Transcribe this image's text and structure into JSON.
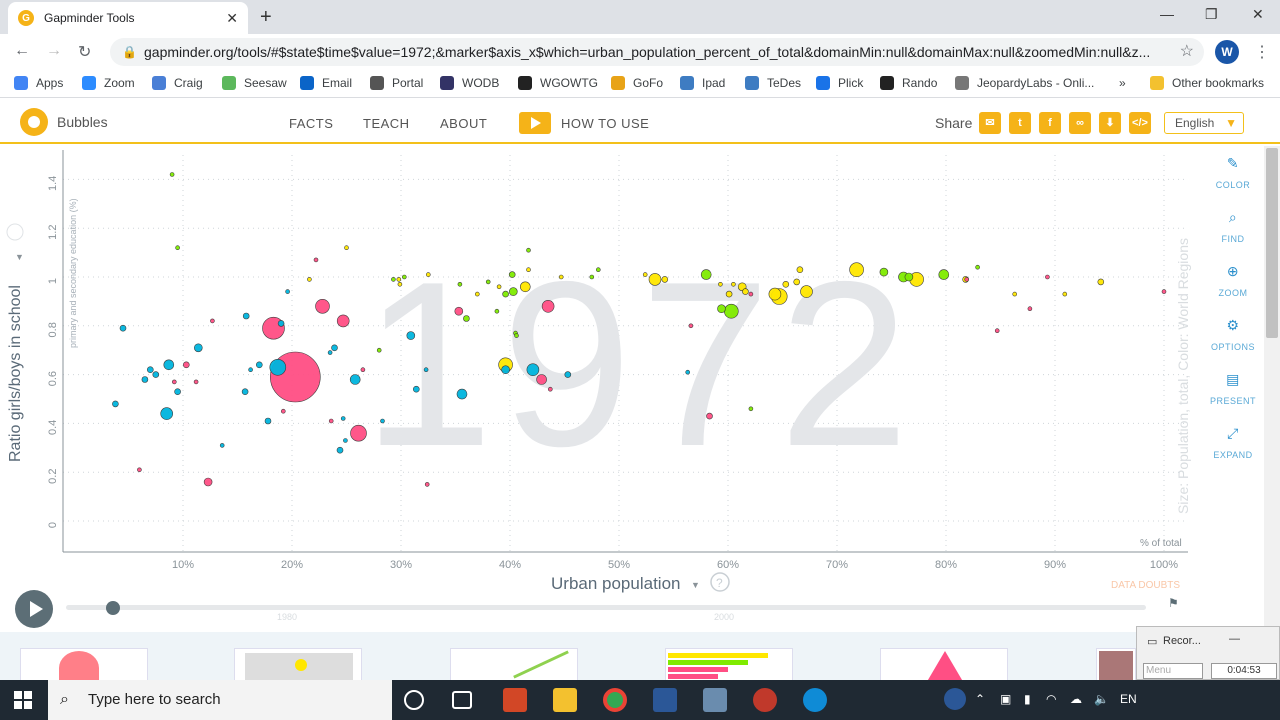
{
  "browser": {
    "tab_title": "Gapminder Tools",
    "tab_close": "✕",
    "new_tab": "+",
    "url": "gapminder.org/tools/#$state$time$value=1972;&marker$axis_x$which=urban_population_percent_of_total&domainMin:null&domainMax:null&zoomedMin:null&z...",
    "profile_initial": "W",
    "window_minimize": "—",
    "window_restore": "❐",
    "window_close": "✕"
  },
  "bookmarks": [
    {
      "label": "Apps",
      "color": "#4285f4"
    },
    {
      "label": "Zoom",
      "color": "#2d8cff"
    },
    {
      "label": "Craig",
      "color": "#4a7fd6"
    },
    {
      "label": "Seesaw",
      "color": "#5cb85c"
    },
    {
      "label": "Email",
      "color": "#0a64c8"
    },
    {
      "label": "Portal",
      "color": "#555555"
    },
    {
      "label": "WODB",
      "color": "#333366"
    },
    {
      "label": "WGOWTG",
      "color": "#222222"
    },
    {
      "label": "GoFo",
      "color": "#e8a317"
    },
    {
      "label": "Ipad",
      "color": "#3e7cc2"
    },
    {
      "label": "TeDes",
      "color": "#3e7cc2"
    },
    {
      "label": "Plick",
      "color": "#1a73e8"
    },
    {
      "label": "Rando",
      "color": "#222222"
    },
    {
      "label": "JeopardyLabs - Onli...",
      "color": "#777777"
    }
  ],
  "bookmarks_more": "»",
  "other_bookmarks": "Other bookmarks",
  "gapminder": {
    "tool_name": "Bubbles",
    "nav": [
      "FACTS",
      "TEACH",
      "ABOUT"
    ],
    "how_to_use": "HOW TO USE",
    "share_label": "Share",
    "language": "English",
    "language_arrow": "▼"
  },
  "chart_data": {
    "type": "scatter",
    "year_watermark": "1972",
    "ylabel": "Ratio girls/boys in school",
    "ylabel_sub": "primary and secondary education (%)",
    "xlabel": "Urban population",
    "x_unit_note": "% of total",
    "size_color_note": "Size: Population, total, Color: World Regions",
    "data_doubts": "DATA DOUBTS",
    "x_ticks": [
      "10%",
      "20%",
      "30%",
      "40%",
      "50%",
      "60%",
      "70%",
      "80%",
      "90%",
      "100%"
    ],
    "y_ticks": [
      "0",
      "0.2",
      "0.4",
      "0.6",
      "0.8",
      "1",
      "1.2",
      "1.4"
    ],
    "xlim": [
      0,
      100
    ],
    "ylim": [
      0,
      1.5
    ],
    "grid": true,
    "colors": {
      "africa": "#00b5de",
      "asia": "#ff4f84",
      "americas": "#7feb00",
      "europe": "#ffe700"
    },
    "points": [
      {
        "x": 9,
        "y": 1.42,
        "r": 2,
        "c": "americas"
      },
      {
        "x": 9.5,
        "y": 1.12,
        "r": 2,
        "c": "americas"
      },
      {
        "x": 4.5,
        "y": 0.79,
        "r": 3,
        "c": "africa"
      },
      {
        "x": 7,
        "y": 0.62,
        "r": 3,
        "c": "africa"
      },
      {
        "x": 7.5,
        "y": 0.6,
        "r": 3,
        "c": "africa"
      },
      {
        "x": 6.5,
        "y": 0.58,
        "r": 3,
        "c": "africa"
      },
      {
        "x": 3.8,
        "y": 0.48,
        "r": 3,
        "c": "africa"
      },
      {
        "x": 8.7,
        "y": 0.64,
        "r": 5,
        "c": "africa"
      },
      {
        "x": 9.2,
        "y": 0.57,
        "r": 2,
        "c": "asia"
      },
      {
        "x": 9.5,
        "y": 0.53,
        "r": 3,
        "c": "africa"
      },
      {
        "x": 10.3,
        "y": 0.64,
        "r": 3,
        "c": "asia"
      },
      {
        "x": 8.5,
        "y": 0.44,
        "r": 6,
        "c": "africa"
      },
      {
        "x": 11.4,
        "y": 0.71,
        "r": 4,
        "c": "africa"
      },
      {
        "x": 11.2,
        "y": 0.57,
        "r": 2,
        "c": "asia"
      },
      {
        "x": 12.7,
        "y": 0.82,
        "r": 2,
        "c": "asia"
      },
      {
        "x": 13.6,
        "y": 0.31,
        "r": 2,
        "c": "africa"
      },
      {
        "x": 6,
        "y": 0.21,
        "r": 2,
        "c": "asia"
      },
      {
        "x": 12.3,
        "y": 0.16,
        "r": 4,
        "c": "asia"
      },
      {
        "x": 15.8,
        "y": 0.84,
        "r": 3,
        "c": "africa"
      },
      {
        "x": 15.7,
        "y": 0.53,
        "r": 3,
        "c": "africa"
      },
      {
        "x": 16.2,
        "y": 0.62,
        "r": 2,
        "c": "africa"
      },
      {
        "x": 17,
        "y": 0.64,
        "r": 3,
        "c": "africa"
      },
      {
        "x": 18.3,
        "y": 0.79,
        "r": 11,
        "c": "asia"
      },
      {
        "x": 19,
        "y": 0.81,
        "r": 3,
        "c": "africa"
      },
      {
        "x": 17.8,
        "y": 0.41,
        "r": 3,
        "c": "africa"
      },
      {
        "x": 19.2,
        "y": 0.45,
        "r": 2,
        "c": "asia"
      },
      {
        "x": 19.6,
        "y": 0.94,
        "r": 2,
        "c": "africa"
      },
      {
        "x": 18.7,
        "y": 0.63,
        "r": 8,
        "c": "africa"
      },
      {
        "x": 20.3,
        "y": 0.59,
        "r": 25,
        "c": "asia"
      },
      {
        "x": 21.6,
        "y": 0.99,
        "r": 2,
        "c": "europe"
      },
      {
        "x": 22.2,
        "y": 1.07,
        "r": 2,
        "c": "asia"
      },
      {
        "x": 22.8,
        "y": 0.88,
        "r": 7,
        "c": "asia"
      },
      {
        "x": 23.5,
        "y": 0.69,
        "r": 2,
        "c": "africa"
      },
      {
        "x": 23.9,
        "y": 0.71,
        "r": 3,
        "c": "africa"
      },
      {
        "x": 24.7,
        "y": 0.82,
        "r": 6,
        "c": "asia"
      },
      {
        "x": 23.6,
        "y": 0.41,
        "r": 2,
        "c": "asia"
      },
      {
        "x": 24.9,
        "y": 0.33,
        "r": 2,
        "c": "africa"
      },
      {
        "x": 24.4,
        "y": 0.29,
        "r": 3,
        "c": "africa"
      },
      {
        "x": 24.7,
        "y": 0.42,
        "r": 2,
        "c": "africa"
      },
      {
        "x": 25,
        "y": 1.12,
        "r": 2,
        "c": "europe"
      },
      {
        "x": 25.8,
        "y": 0.58,
        "r": 5,
        "c": "africa"
      },
      {
        "x": 26.5,
        "y": 0.62,
        "r": 2,
        "c": "asia"
      },
      {
        "x": 26.1,
        "y": 0.36,
        "r": 8,
        "c": "asia"
      },
      {
        "x": 28,
        "y": 0.7,
        "r": 2,
        "c": "americas"
      },
      {
        "x": 28.3,
        "y": 0.41,
        "r": 2,
        "c": "africa"
      },
      {
        "x": 29.3,
        "y": 0.99,
        "r": 2,
        "c": "americas"
      },
      {
        "x": 29.8,
        "y": 0.99,
        "r": 2,
        "c": "europe"
      },
      {
        "x": 30.3,
        "y": 1,
        "r": 2,
        "c": "americas"
      },
      {
        "x": 29.9,
        "y": 0.97,
        "r": 2,
        "c": "europe"
      },
      {
        "x": 30.9,
        "y": 0.76,
        "r": 4,
        "c": "africa"
      },
      {
        "x": 32.5,
        "y": 1.01,
        "r": 2,
        "c": "europe"
      },
      {
        "x": 32.3,
        "y": 0.62,
        "r": 2,
        "c": "africa"
      },
      {
        "x": 31.4,
        "y": 0.54,
        "r": 3,
        "c": "africa"
      },
      {
        "x": 32.4,
        "y": 0.15,
        "r": 2,
        "c": "asia"
      },
      {
        "x": 35.3,
        "y": 0.86,
        "r": 4,
        "c": "asia"
      },
      {
        "x": 35.4,
        "y": 0.97,
        "r": 2,
        "c": "americas"
      },
      {
        "x": 36,
        "y": 0.83,
        "r": 3,
        "c": "americas"
      },
      {
        "x": 37,
        "y": 0.93,
        "r": 2,
        "c": "europe"
      },
      {
        "x": 35.6,
        "y": 0.52,
        "r": 5,
        "c": "africa"
      },
      {
        "x": 38,
        "y": 0.98,
        "r": 2,
        "c": "americas"
      },
      {
        "x": 38.8,
        "y": 0.86,
        "r": 2,
        "c": "americas"
      },
      {
        "x": 39,
        "y": 0.96,
        "r": 2,
        "c": "europe"
      },
      {
        "x": 39.6,
        "y": 0.93,
        "r": 3,
        "c": "americas"
      },
      {
        "x": 40.3,
        "y": 0.94,
        "r": 4,
        "c": "americas"
      },
      {
        "x": 40.2,
        "y": 1.01,
        "r": 3,
        "c": "americas"
      },
      {
        "x": 41.4,
        "y": 0.96,
        "r": 5,
        "c": "europe"
      },
      {
        "x": 41.7,
        "y": 1.11,
        "r": 2,
        "c": "americas"
      },
      {
        "x": 41.7,
        "y": 1.03,
        "r": 2,
        "c": "europe"
      },
      {
        "x": 40.5,
        "y": 0.77,
        "r": 2,
        "c": "americas"
      },
      {
        "x": 40.6,
        "y": 0.76,
        "r": 2,
        "c": "americas"
      },
      {
        "x": 39.6,
        "y": 0.64,
        "r": 7,
        "c": "europe"
      },
      {
        "x": 39.6,
        "y": 0.62,
        "r": 4,
        "c": "africa"
      },
      {
        "x": 42.1,
        "y": 0.62,
        "r": 6,
        "c": "africa"
      },
      {
        "x": 42.9,
        "y": 0.58,
        "r": 5,
        "c": "asia"
      },
      {
        "x": 43.7,
        "y": 0.54,
        "r": 2,
        "c": "asia"
      },
      {
        "x": 43.5,
        "y": 0.88,
        "r": 6,
        "c": "asia"
      },
      {
        "x": 44.7,
        "y": 1,
        "r": 2,
        "c": "europe"
      },
      {
        "x": 45.3,
        "y": 0.6,
        "r": 3,
        "c": "africa"
      },
      {
        "x": 47.5,
        "y": 1,
        "r": 2,
        "c": "americas"
      },
      {
        "x": 48.1,
        "y": 1.03,
        "r": 2,
        "c": "americas"
      },
      {
        "x": 52.4,
        "y": 1.01,
        "r": 2,
        "c": "europe"
      },
      {
        "x": 53.3,
        "y": 0.99,
        "r": 6,
        "c": "europe"
      },
      {
        "x": 54.2,
        "y": 0.99,
        "r": 3,
        "c": "europe"
      },
      {
        "x": 56.3,
        "y": 0.61,
        "r": 2,
        "c": "africa"
      },
      {
        "x": 56.6,
        "y": 0.8,
        "r": 2,
        "c": "asia"
      },
      {
        "x": 58,
        "y": 1.01,
        "r": 5,
        "c": "americas"
      },
      {
        "x": 58.3,
        "y": 0.43,
        "r": 3,
        "c": "asia"
      },
      {
        "x": 59.4,
        "y": 0.87,
        "r": 4,
        "c": "americas"
      },
      {
        "x": 60.1,
        "y": 0.93,
        "r": 3,
        "c": "europe"
      },
      {
        "x": 60.3,
        "y": 0.86,
        "r": 7,
        "c": "americas"
      },
      {
        "x": 59.3,
        "y": 0.97,
        "r": 2,
        "c": "europe"
      },
      {
        "x": 60.5,
        "y": 0.97,
        "r": 2,
        "c": "europe"
      },
      {
        "x": 61.3,
        "y": 0.96,
        "r": 4,
        "c": "europe"
      },
      {
        "x": 61.6,
        "y": 0.94,
        "r": 3,
        "c": "europe"
      },
      {
        "x": 62.1,
        "y": 0.93,
        "r": 2,
        "c": "asia"
      },
      {
        "x": 62.1,
        "y": 0.46,
        "r": 2,
        "c": "americas"
      },
      {
        "x": 64.3,
        "y": 0.93,
        "r": 6,
        "c": "europe"
      },
      {
        "x": 64.7,
        "y": 0.92,
        "r": 8,
        "c": "europe"
      },
      {
        "x": 65.3,
        "y": 0.97,
        "r": 3,
        "c": "europe"
      },
      {
        "x": 66.3,
        "y": 0.98,
        "r": 3,
        "c": "europe"
      },
      {
        "x": 66.6,
        "y": 1.03,
        "r": 3,
        "c": "europe"
      },
      {
        "x": 67.2,
        "y": 0.94,
        "r": 6,
        "c": "europe"
      },
      {
        "x": 71.8,
        "y": 1.03,
        "r": 7,
        "c": "europe"
      },
      {
        "x": 74.3,
        "y": 1.02,
        "r": 4,
        "c": "americas"
      },
      {
        "x": 76.1,
        "y": 1,
        "r": 5,
        "c": "americas"
      },
      {
        "x": 76.6,
        "y": 1,
        "r": 4,
        "c": "americas"
      },
      {
        "x": 77.3,
        "y": 0.99,
        "r": 7,
        "c": "europe"
      },
      {
        "x": 79.8,
        "y": 1.01,
        "r": 5,
        "c": "americas"
      },
      {
        "x": 81.8,
        "y": 0.99,
        "r": 3,
        "c": "europe"
      },
      {
        "x": 81.9,
        "y": 0.99,
        "r": 2,
        "c": "asia"
      },
      {
        "x": 82.9,
        "y": 1.04,
        "r": 2,
        "c": "americas"
      },
      {
        "x": 84.7,
        "y": 0.78,
        "r": 2,
        "c": "asia"
      },
      {
        "x": 86.3,
        "y": 0.93,
        "r": 2,
        "c": "europe"
      },
      {
        "x": 87.7,
        "y": 0.87,
        "r": 2,
        "c": "asia"
      },
      {
        "x": 89.3,
        "y": 1,
        "r": 2,
        "c": "asia"
      },
      {
        "x": 90.9,
        "y": 0.93,
        "r": 2,
        "c": "europe"
      },
      {
        "x": 94.2,
        "y": 0.98,
        "r": 3,
        "c": "europe"
      },
      {
        "x": 100,
        "y": 0.94,
        "r": 2,
        "c": "asia"
      }
    ]
  },
  "tools": [
    "COLOR",
    "FIND",
    "ZOOM",
    "OPTIONS",
    "PRESENT",
    "EXPAND"
  ],
  "timeline": {
    "labels": [
      "1980",
      "2000"
    ]
  },
  "recorder": {
    "title": "Recor...",
    "menu": "Menu",
    "time": "0:04:53"
  },
  "taskbar": {
    "search_placeholder": "Type here to search",
    "lang": "EN"
  }
}
